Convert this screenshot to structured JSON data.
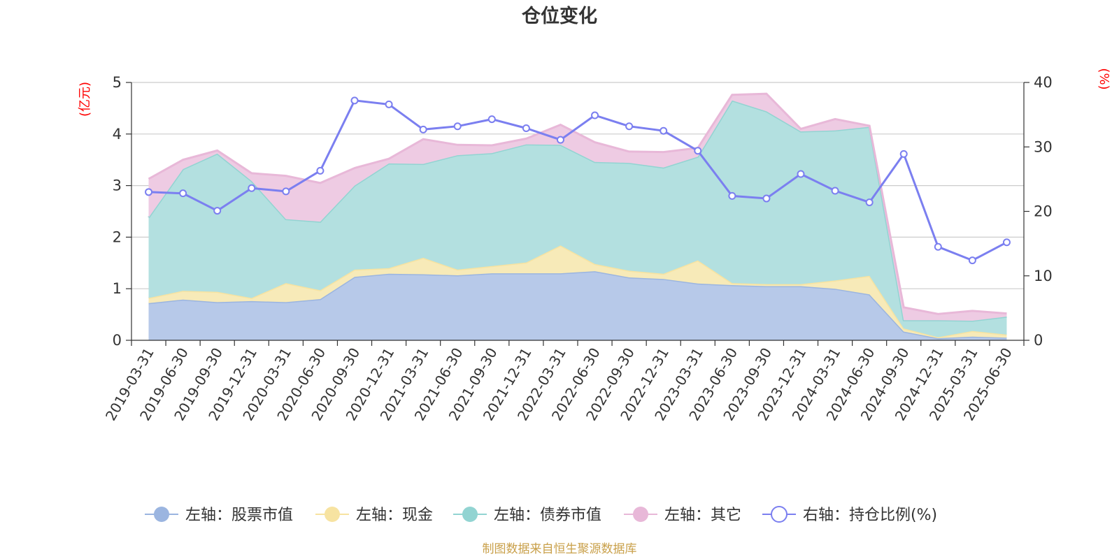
{
  "chart_data": {
    "type": "area",
    "title": "仓位变化",
    "left_axis": {
      "unit": "(亿元)",
      "ylim": [
        0,
        5
      ],
      "ticks": [
        0,
        1,
        2,
        3,
        4,
        5
      ]
    },
    "right_axis": {
      "unit": "(%)",
      "ylim": [
        0,
        40
      ],
      "ticks": [
        0,
        10,
        20,
        30,
        40
      ]
    },
    "grid": true,
    "stacked": true,
    "legend_position": "bottom",
    "categories": [
      "2019-03-31",
      "2019-06-30",
      "2019-09-30",
      "2019-12-31",
      "2020-03-31",
      "2020-06-30",
      "2020-09-30",
      "2020-12-31",
      "2021-03-31",
      "2021-06-30",
      "2021-09-30",
      "2021-12-31",
      "2022-03-31",
      "2022-06-30",
      "2022-09-30",
      "2022-12-31",
      "2023-03-31",
      "2023-06-30",
      "2023-09-30",
      "2023-12-31",
      "2024-03-31",
      "2024-06-30",
      "2024-09-30",
      "2024-12-31",
      "2025-03-31",
      "2025-06-30"
    ],
    "series": [
      {
        "name": "左轴：股票市值",
        "axis": "left",
        "kind": "area",
        "color": "#9bb5e0",
        "fill": "#b7c9e9",
        "values": [
          0.72,
          0.79,
          0.74,
          0.76,
          0.74,
          0.8,
          1.23,
          1.29,
          1.28,
          1.26,
          1.3,
          1.3,
          1.3,
          1.34,
          1.22,
          1.19,
          1.1,
          1.07,
          1.05,
          1.05,
          1.0,
          0.89,
          0.17,
          0.04,
          0.07,
          0.05
        ]
      },
      {
        "name": "左轴：现金",
        "axis": "left",
        "kind": "area",
        "color": "#f7e3a1",
        "fill": "#f7eab8",
        "values": [
          0.1,
          0.17,
          0.2,
          0.06,
          0.37,
          0.17,
          0.14,
          0.11,
          0.32,
          0.11,
          0.14,
          0.21,
          0.54,
          0.14,
          0.13,
          0.1,
          0.45,
          0.04,
          0.04,
          0.04,
          0.16,
          0.36,
          0.06,
          0.02,
          0.11,
          0.06
        ]
      },
      {
        "name": "左轴：债券市值",
        "axis": "left",
        "kind": "area",
        "color": "#92d4d2",
        "fill": "#b3e0e0",
        "values": [
          1.56,
          2.36,
          2.68,
          2.27,
          1.24,
          1.33,
          1.63,
          2.03,
          1.82,
          2.22,
          2.19,
          2.29,
          1.95,
          1.98,
          2.09,
          2.06,
          2.01,
          3.54,
          3.35,
          2.96,
          2.91,
          2.89,
          0.16,
          0.33,
          0.2,
          0.35
        ]
      },
      {
        "name": "左轴：其它",
        "axis": "left",
        "kind": "area",
        "color": "#e8b8d8",
        "fill": "#eecbe3",
        "values": [
          0.75,
          0.18,
          0.06,
          0.15,
          0.84,
          0.75,
          0.34,
          0.09,
          0.48,
          0.2,
          0.15,
          0.11,
          0.39,
          0.38,
          0.22,
          0.3,
          0.17,
          0.11,
          0.34,
          0.05,
          0.22,
          0.02,
          0.25,
          0.12,
          0.19,
          0.06
        ]
      },
      {
        "name": "右轴：持仓比例(%)",
        "axis": "right",
        "kind": "line",
        "color": "#7b7ff0",
        "values": [
          23.0,
          22.8,
          20.1,
          23.6,
          23.1,
          26.3,
          37.2,
          36.6,
          32.7,
          33.2,
          34.3,
          32.9,
          31.1,
          34.9,
          33.2,
          32.5,
          29.4,
          22.4,
          22.0,
          25.8,
          23.2,
          21.4,
          28.9,
          14.5,
          12.4,
          15.2
        ]
      }
    ],
    "source_note": "制图数据来自恒生聚源数据库"
  }
}
